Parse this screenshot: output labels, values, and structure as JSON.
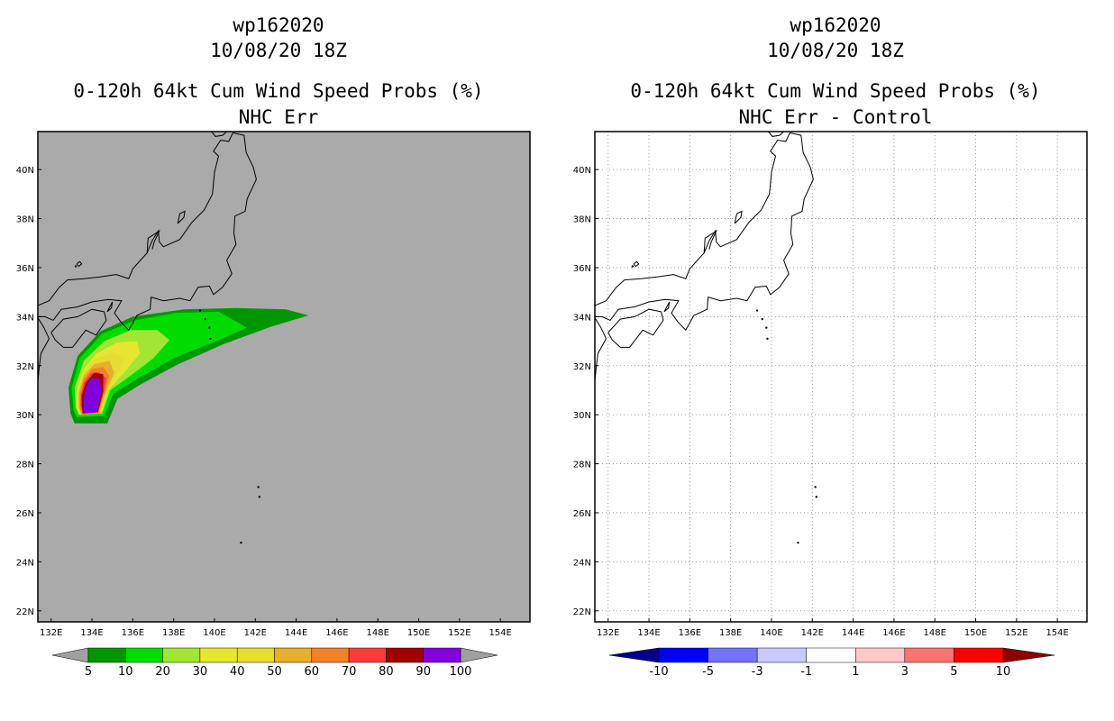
{
  "left_panel": {
    "storm_id": "wp162020",
    "datetime": "10/08/20 18Z",
    "product": "0-120h 64kt Cum Wind Speed Probs (%)",
    "subtitle": "NHC Err",
    "background_color": "#aaaaaa",
    "colorbar": {
      "labels": [
        "5",
        "10",
        "20",
        "30",
        "40",
        "50",
        "60",
        "70",
        "80",
        "90",
        "100"
      ],
      "colors": [
        "#009600",
        "#00dc00",
        "#a0e632",
        "#e6e632",
        "#e6dc32",
        "#e6af2d",
        "#f08228",
        "#fa3c3c",
        "#a00000",
        "#8200dc"
      ],
      "end_color": "#a0a0a0"
    }
  },
  "right_panel": {
    "storm_id": "wp162020",
    "datetime": "10/08/20 18Z",
    "product": "0-120h 64kt Cum Wind Speed Probs (%)",
    "subtitle": "NHC Err - Control",
    "background_color": "#ffffff",
    "colorbar": {
      "labels": [
        "-10",
        "-5",
        "-3",
        "-1",
        "1",
        "3",
        "5",
        "10"
      ],
      "colors": [
        "#0000ff",
        "#7373ff",
        "#c8c8ff",
        "#ffffff",
        "#ffc8c8",
        "#ff7373",
        "#ff0000"
      ],
      "low_color": "#00008c",
      "high_color": "#8c0000"
    }
  },
  "map": {
    "lon_labels": [
      "132E",
      "134E",
      "136E",
      "138E",
      "140E",
      "142E",
      "144E",
      "146E",
      "148E",
      "150E",
      "152E",
      "154E"
    ],
    "lat_labels": [
      "40N",
      "38N",
      "36N",
      "34N",
      "32N",
      "30N",
      "28N",
      "26N",
      "24N",
      "22N"
    ],
    "lon_values": [
      132,
      134,
      136,
      138,
      140,
      142,
      144,
      146,
      148,
      150,
      152,
      154
    ],
    "lat_values": [
      40,
      38,
      36,
      34,
      32,
      30,
      28,
      26,
      24,
      22
    ],
    "lon_range": [
      131.35,
      155.45
    ],
    "lat_range": [
      21.55,
      41.55
    ]
  },
  "probability_field": {
    "levels": [
      5,
      10,
      20,
      30,
      40,
      50,
      60,
      70,
      80,
      90
    ],
    "contours": [
      [
        [
          133.15,
          29.65
        ],
        [
          134.75,
          29.65
        ],
        [
          135.25,
          30.65
        ],
        [
          136.4,
          31.25
        ],
        [
          138.2,
          32.05
        ],
        [
          140.5,
          32.9
        ],
        [
          142.8,
          33.6
        ],
        [
          144.6,
          34.05
        ],
        [
          143.5,
          34.3
        ],
        [
          141.0,
          34.35
        ],
        [
          138.5,
          34.3
        ],
        [
          136.0,
          34.0
        ],
        [
          134.4,
          33.4
        ],
        [
          133.3,
          32.4
        ],
        [
          132.85,
          31.1
        ],
        [
          132.95,
          30.05
        ]
      ],
      [
        [
          133.25,
          29.9
        ],
        [
          134.6,
          29.95
        ],
        [
          135.05,
          30.85
        ],
        [
          136.3,
          31.5
        ],
        [
          138.0,
          32.3
        ],
        [
          140.2,
          33.05
        ],
        [
          141.6,
          33.55
        ],
        [
          140.2,
          34.2
        ],
        [
          138.1,
          34.15
        ],
        [
          136.1,
          33.85
        ],
        [
          134.5,
          33.3
        ],
        [
          133.4,
          32.3
        ],
        [
          133.0,
          31.1
        ],
        [
          133.1,
          30.2
        ]
      ],
      [
        [
          133.35,
          30.0
        ],
        [
          134.5,
          30.05
        ],
        [
          134.9,
          31.0
        ],
        [
          135.9,
          31.6
        ],
        [
          137.0,
          32.3
        ],
        [
          137.8,
          33.05
        ],
        [
          137.2,
          33.45
        ],
        [
          135.9,
          33.45
        ],
        [
          134.6,
          33.0
        ],
        [
          133.6,
          32.2
        ],
        [
          133.15,
          31.1
        ],
        [
          133.2,
          30.3
        ]
      ],
      [
        [
          133.4,
          30.0
        ],
        [
          134.45,
          30.05
        ],
        [
          134.8,
          31.0
        ],
        [
          135.6,
          31.75
        ],
        [
          136.35,
          32.5
        ],
        [
          136.2,
          33.0
        ],
        [
          135.25,
          32.95
        ],
        [
          134.2,
          32.5
        ],
        [
          133.55,
          31.8
        ],
        [
          133.25,
          30.95
        ],
        [
          133.25,
          30.3
        ]
      ],
      [
        [
          133.45,
          30.0
        ],
        [
          134.4,
          30.05
        ],
        [
          134.75,
          31.0
        ],
        [
          135.35,
          31.8
        ],
        [
          135.6,
          32.3
        ],
        [
          135.0,
          32.55
        ],
        [
          134.1,
          32.25
        ],
        [
          133.55,
          31.7
        ],
        [
          133.3,
          30.9
        ],
        [
          133.3,
          30.3
        ]
      ],
      [
        [
          133.5,
          30.0
        ],
        [
          134.35,
          30.05
        ],
        [
          134.7,
          31.0
        ],
        [
          135.1,
          31.7
        ],
        [
          134.85,
          32.2
        ],
        [
          134.1,
          32.05
        ],
        [
          133.6,
          31.6
        ],
        [
          133.35,
          30.9
        ],
        [
          133.35,
          30.3
        ]
      ],
      [
        [
          133.5,
          30.0
        ],
        [
          134.3,
          30.05
        ],
        [
          134.65,
          31.0
        ],
        [
          134.85,
          31.6
        ],
        [
          134.55,
          31.95
        ],
        [
          134.0,
          31.85
        ],
        [
          133.6,
          31.45
        ],
        [
          133.4,
          30.85
        ],
        [
          133.4,
          30.3
        ]
      ],
      [
        [
          133.55,
          30.05
        ],
        [
          134.3,
          30.1
        ],
        [
          134.6,
          31.0
        ],
        [
          134.7,
          31.5
        ],
        [
          134.3,
          31.75
        ],
        [
          133.95,
          31.7
        ],
        [
          133.6,
          31.3
        ],
        [
          133.45,
          30.8
        ],
        [
          133.45,
          30.35
        ]
      ],
      [
        [
          133.55,
          30.05
        ],
        [
          134.3,
          30.1
        ],
        [
          134.55,
          30.95
        ],
        [
          134.55,
          31.65
        ],
        [
          134.1,
          31.7
        ],
        [
          133.7,
          31.3
        ],
        [
          133.5,
          30.8
        ],
        [
          133.5,
          30.35
        ]
      ],
      [
        [
          133.6,
          30.05
        ],
        [
          134.25,
          30.1
        ],
        [
          134.45,
          30.9
        ],
        [
          134.4,
          31.45
        ],
        [
          133.95,
          31.5
        ],
        [
          133.7,
          31.1
        ],
        [
          133.6,
          30.7
        ],
        [
          133.6,
          30.35
        ]
      ]
    ]
  }
}
